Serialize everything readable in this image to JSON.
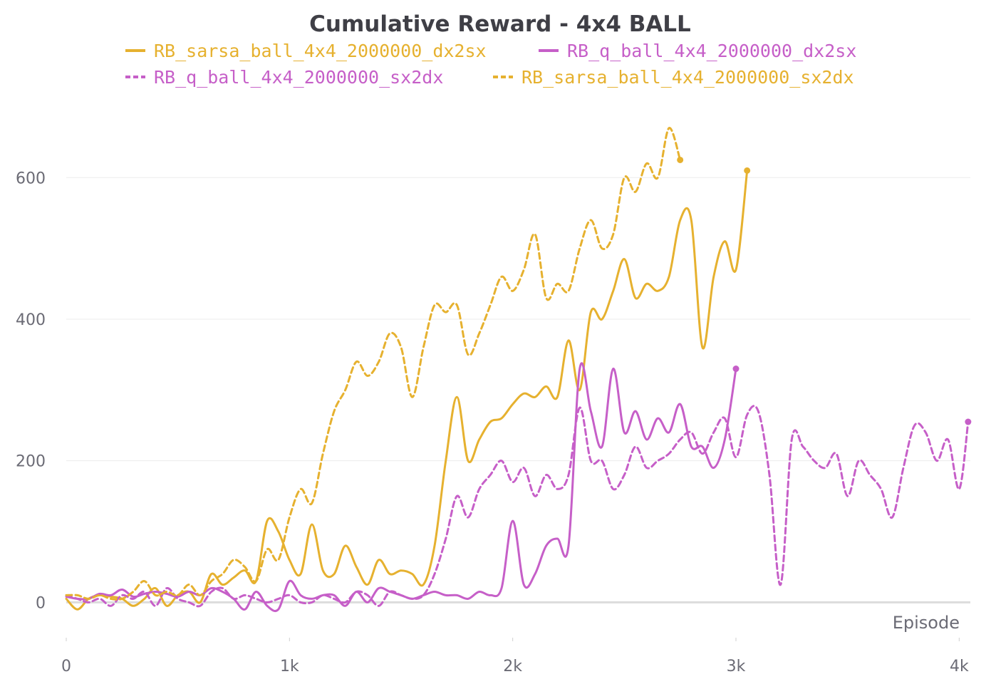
{
  "chart_data": {
    "type": "line",
    "title": "Cumulative Reward - 4x4 BALL",
    "xlabel": "Episode",
    "ylabel": "",
    "xlim": [
      0,
      4050
    ],
    "ylim": [
      -55,
      705
    ],
    "x_ticks": [
      {
        "value": 0,
        "label": "0"
      },
      {
        "value": 1000,
        "label": "1k"
      },
      {
        "value": 2000,
        "label": "2k"
      },
      {
        "value": 3000,
        "label": "3k"
      },
      {
        "value": 4000,
        "label": "4k"
      }
    ],
    "y_ticks": [
      {
        "value": 0,
        "label": "0"
      },
      {
        "value": 200,
        "label": "200"
      },
      {
        "value": 400,
        "label": "400"
      },
      {
        "value": 600,
        "label": "600"
      }
    ],
    "grid": true,
    "legend_position": "top",
    "series": [
      {
        "name": "RB_sarsa_ball_4x4_2000000_dx2sx",
        "color": "#e6b12f",
        "dash": "solid",
        "x": [
          0,
          50,
          100,
          150,
          200,
          250,
          300,
          350,
          400,
          450,
          500,
          550,
          600,
          650,
          700,
          750,
          800,
          850,
          900,
          950,
          1000,
          1050,
          1100,
          1150,
          1200,
          1250,
          1300,
          1350,
          1400,
          1450,
          1500,
          1550,
          1600,
          1650,
          1700,
          1750,
          1800,
          1850,
          1900,
          1950,
          2000,
          2050,
          2100,
          2150,
          2200,
          2250,
          2300,
          2350,
          2400,
          2450,
          2500,
          2550,
          2600,
          2650,
          2700,
          2750,
          2800,
          2850,
          2900,
          2950,
          3000,
          3050
        ],
        "values": [
          5,
          -10,
          5,
          10,
          8,
          5,
          -5,
          5,
          20,
          -5,
          10,
          15,
          0,
          40,
          25,
          35,
          45,
          30,
          115,
          100,
          60,
          40,
          110,
          45,
          40,
          80,
          50,
          25,
          60,
          40,
          45,
          40,
          25,
          80,
          200,
          290,
          200,
          230,
          255,
          260,
          280,
          295,
          290,
          305,
          290,
          370,
          300,
          410,
          400,
          440,
          485,
          430,
          450,
          440,
          460,
          540,
          540,
          360,
          460,
          510,
          470,
          610
        ]
      },
      {
        "name": "RB_q_ball_4x4_2000000_dx2sx",
        "color": "#c65fc8",
        "dash": "solid",
        "x": [
          0,
          50,
          100,
          150,
          200,
          250,
          300,
          350,
          400,
          450,
          500,
          550,
          600,
          650,
          700,
          750,
          800,
          850,
          900,
          950,
          1000,
          1050,
          1100,
          1150,
          1200,
          1250,
          1300,
          1350,
          1400,
          1450,
          1500,
          1550,
          1600,
          1650,
          1700,
          1750,
          1800,
          1850,
          1900,
          1950,
          2000,
          2050,
          2100,
          2150,
          2200,
          2250,
          2300,
          2350,
          2400,
          2450,
          2500,
          2550,
          2600,
          2650,
          2700,
          2750,
          2800,
          2850,
          2900,
          2950,
          3000
        ],
        "values": [
          8,
          5,
          5,
          12,
          10,
          18,
          8,
          12,
          15,
          12,
          8,
          15,
          10,
          20,
          15,
          5,
          -10,
          15,
          -5,
          -10,
          30,
          10,
          5,
          10,
          10,
          -5,
          15,
          0,
          20,
          15,
          10,
          5,
          10,
          15,
          10,
          10,
          5,
          15,
          10,
          20,
          115,
          25,
          40,
          80,
          90,
          80,
          330,
          270,
          220,
          330,
          240,
          270,
          230,
          260,
          240,
          280,
          220,
          220,
          190,
          230,
          330
        ]
      },
      {
        "name": "RB_q_ball_4x4_2000000_sx2dx",
        "color": "#c65fc8",
        "dash": "dashed",
        "x": [
          0,
          50,
          100,
          150,
          200,
          250,
          300,
          350,
          400,
          450,
          500,
          550,
          600,
          650,
          700,
          750,
          800,
          850,
          900,
          950,
          1000,
          1050,
          1100,
          1150,
          1200,
          1250,
          1300,
          1350,
          1400,
          1450,
          1500,
          1550,
          1600,
          1650,
          1700,
          1750,
          1800,
          1850,
          1900,
          1950,
          2000,
          2050,
          2100,
          2150,
          2200,
          2250,
          2300,
          2350,
          2400,
          2450,
          2500,
          2550,
          2600,
          2650,
          2700,
          2750,
          2800,
          2850,
          2900,
          2950,
          3000,
          3050,
          3100,
          3150,
          3200,
          3250,
          3300,
          3350,
          3400,
          3450,
          3500,
          3550,
          3600,
          3650,
          3700,
          3750,
          3800,
          3850,
          3900,
          3950,
          4000,
          4040
        ],
        "values": [
          10,
          5,
          0,
          5,
          -5,
          10,
          5,
          15,
          -5,
          20,
          5,
          0,
          -5,
          15,
          20,
          5,
          10,
          5,
          0,
          5,
          10,
          0,
          0,
          10,
          5,
          0,
          15,
          10,
          -5,
          15,
          10,
          5,
          10,
          40,
          90,
          150,
          120,
          160,
          180,
          200,
          170,
          190,
          150,
          180,
          160,
          180,
          275,
          200,
          200,
          160,
          180,
          220,
          190,
          200,
          210,
          230,
          240,
          210,
          240,
          260,
          205,
          265,
          270,
          180,
          25,
          230,
          220,
          200,
          190,
          210,
          150,
          200,
          180,
          160,
          120,
          190,
          250,
          240,
          200,
          230,
          160,
          255
        ]
      },
      {
        "name": "RB_sarsa_ball_4x4_2000000_sx2dx",
        "color": "#e6b12f",
        "dash": "dashed",
        "x": [
          0,
          50,
          100,
          150,
          200,
          250,
          300,
          350,
          400,
          450,
          500,
          550,
          600,
          650,
          700,
          750,
          800,
          850,
          900,
          950,
          1000,
          1050,
          1100,
          1150,
          1200,
          1250,
          1300,
          1350,
          1400,
          1450,
          1500,
          1550,
          1600,
          1650,
          1700,
          1750,
          1800,
          1850,
          1900,
          1950,
          2000,
          2050,
          2100,
          2150,
          2200,
          2250,
          2300,
          2350,
          2400,
          2450,
          2500,
          2550,
          2600,
          2650,
          2700,
          2750
        ],
        "values": [
          10,
          10,
          5,
          10,
          5,
          5,
          15,
          30,
          10,
          15,
          10,
          25,
          10,
          30,
          40,
          60,
          50,
          30,
          75,
          60,
          120,
          160,
          140,
          210,
          270,
          300,
          340,
          320,
          340,
          380,
          360,
          290,
          360,
          420,
          410,
          420,
          350,
          380,
          420,
          460,
          440,
          470,
          520,
          430,
          450,
          440,
          500,
          540,
          500,
          520,
          600,
          580,
          620,
          600,
          670,
          625
        ]
      }
    ]
  }
}
